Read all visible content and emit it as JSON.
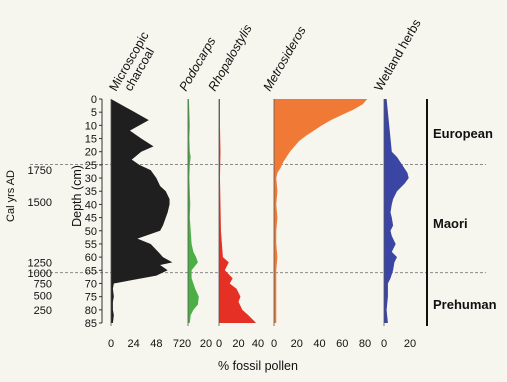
{
  "chart_data": {
    "type": "area",
    "xlabel": "% fossil pollen",
    "depth_axis": {
      "label": "Depth (cm)",
      "range": [
        0,
        85
      ],
      "ticks": [
        0,
        5,
        10,
        15,
        20,
        25,
        30,
        35,
        40,
        45,
        50,
        55,
        60,
        65,
        70,
        75,
        80,
        85
      ]
    },
    "age_axis": {
      "label": "Cal yrs AD",
      "ticks": [
        {
          "label": "1750",
          "depth": 27
        },
        {
          "label": "1500",
          "depth": 39
        },
        {
          "label": "1250",
          "depth": 62
        },
        {
          "label": "1000",
          "depth": 66
        },
        {
          "label": "750",
          "depth": 70
        },
        {
          "label": "500",
          "depth": 74.5
        },
        {
          "label": "250",
          "depth": 80
        }
      ]
    },
    "zones": [
      {
        "label": "European",
        "top": 0,
        "bottom": 26
      },
      {
        "label": "Maori",
        "top": 26,
        "bottom": 67
      },
      {
        "label": "Prehuman",
        "top": 67,
        "bottom": 85
      }
    ],
    "series": [
      {
        "name": "Microscopic\ncharcoal",
        "italic": false,
        "color": "#1f1f1f",
        "xlim": [
          0,
          72
        ],
        "x_ticks": [
          "0",
          "24",
          "48",
          "72"
        ],
        "depth": [
          0,
          2,
          5,
          8,
          10,
          12,
          15,
          18,
          20,
          23,
          25,
          27,
          30,
          33,
          35,
          38,
          40,
          43,
          45,
          48,
          50,
          53,
          55,
          58,
          60,
          62,
          63,
          65,
          67,
          70,
          72,
          75,
          77,
          80,
          82,
          85
        ],
        "values": [
          0,
          10,
          25,
          40,
          30,
          20,
          32,
          45,
          32,
          22,
          30,
          42,
          48,
          52,
          58,
          62,
          62,
          60,
          58,
          55,
          52,
          28,
          42,
          50,
          55,
          65,
          52,
          60,
          48,
          3,
          2,
          3,
          2,
          2,
          3,
          2
        ]
      },
      {
        "name": "Podocarps",
        "italic": true,
        "color": "#4caf45",
        "xlim": [
          0,
          20
        ],
        "x_ticks": [
          "0",
          "20"
        ],
        "depth": [
          0,
          5,
          10,
          15,
          20,
          22,
          25,
          30,
          35,
          40,
          45,
          50,
          55,
          58,
          60,
          62,
          65,
          68,
          70,
          72,
          75,
          78,
          80,
          82,
          85
        ],
        "values": [
          1,
          1.5,
          2,
          1.5,
          2,
          3,
          2,
          1.5,
          2,
          2.5,
          2,
          3,
          4,
          6,
          9,
          11,
          4,
          4,
          6,
          8,
          12,
          11,
          6,
          3,
          2
        ]
      },
      {
        "name": "Rhopalostylis",
        "italic": true,
        "color": "#e53125",
        "xlim": [
          0,
          40
        ],
        "x_ticks": [
          "0",
          "20",
          "40"
        ],
        "depth": [
          0,
          10,
          20,
          30,
          40,
          50,
          55,
          60,
          62,
          65,
          68,
          70,
          72,
          75,
          77,
          80,
          82,
          85
        ],
        "values": [
          1,
          1,
          1.5,
          1,
          1.5,
          2,
          3,
          4,
          10,
          6,
          14,
          11,
          18,
          22,
          20,
          24,
          30,
          38
        ]
      },
      {
        "name": "Metrosideros",
        "italic": true,
        "color": "#f07a35",
        "xlim": [
          0,
          80
        ],
        "x_ticks": [
          "0",
          "20",
          "40",
          "60",
          "80"
        ],
        "depth": [
          0,
          2,
          4,
          6,
          8,
          10,
          12,
          14,
          16,
          18,
          20,
          22,
          24,
          26,
          28,
          30,
          35,
          40,
          45,
          50,
          55,
          60,
          65,
          70,
          75,
          80,
          85
        ],
        "values": [
          82,
          78,
          70,
          60,
          50,
          42,
          35,
          28,
          22,
          18,
          14,
          11,
          8,
          6,
          3,
          2,
          3,
          2,
          3,
          2,
          2,
          3,
          2,
          2,
          2,
          2,
          2
        ]
      },
      {
        "name": "Wetland herbs",
        "italic": false,
        "color": "#3b45a3",
        "xlim": [
          0,
          20
        ],
        "x_ticks": [
          "0",
          "20"
        ],
        "depth": [
          0,
          5,
          10,
          15,
          20,
          22,
          25,
          28,
          30,
          32,
          35,
          38,
          40,
          43,
          45,
          48,
          50,
          52,
          55,
          58,
          60,
          62,
          65,
          68,
          70,
          75,
          80,
          85
        ],
        "values": [
          2,
          3,
          4,
          5,
          6,
          10,
          14,
          18,
          19,
          16,
          10,
          7,
          6,
          5,
          6,
          7,
          5,
          6,
          9,
          6,
          10,
          8,
          7,
          5,
          3,
          3,
          2,
          3
        ]
      }
    ]
  }
}
